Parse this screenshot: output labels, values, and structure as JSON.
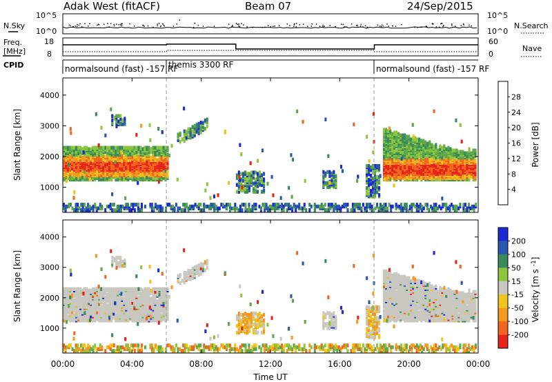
{
  "header": {
    "station": "Adak West (fitACF)",
    "beam": "Beam 07",
    "date": "24/Sep/2015"
  },
  "noise_panel": {
    "left_label": "N.Sky",
    "left_ticks": [
      "10^5",
      "10^0"
    ],
    "right_label": "N.Search",
    "right_ticks": [
      "10^5",
      "10^0"
    ]
  },
  "freq_panel": {
    "left_label_1": "Freq.",
    "left_label_2": "[MHz]",
    "left_ticks": [
      "18",
      "8"
    ],
    "right_label": "Nave",
    "right_ticks": [
      "60",
      "0"
    ]
  },
  "cpid_panel": {
    "label": "CPID",
    "segments": [
      {
        "name": "normalsound (fast) -157 RF",
        "start": "00:00",
        "end": "06:00"
      },
      {
        "name": "themis 3300 RF",
        "start": "06:00",
        "end": "18:00"
      },
      {
        "name": "normalsound (fast) -157 RF",
        "start": "18:00",
        "end": "24:00"
      }
    ]
  },
  "colors": {
    "power_scale": [
      "#1a2bd6",
      "#2a57b0",
      "#3b8a5c",
      "#5fa84a",
      "#8cc63f",
      "#f0c419",
      "#f59a1f",
      "#f2661f",
      "#e8241a"
    ],
    "velocity_scale": [
      "#1a2bd6",
      "#2a57b0",
      "#3b8a5c",
      "#5fa84a",
      "#8cc63f",
      "#c8c8c0",
      "#f0c419",
      "#f59a1f",
      "#f2661f",
      "#e8241a"
    ],
    "gray": "#c8c8c0"
  },
  "chart_data": [
    {
      "type": "heatmap",
      "name": "power",
      "ylabel": "Slant Range [km]",
      "ylim": [
        180,
        4560
      ],
      "yticks": [
        "1000",
        "2000",
        "3000",
        "4000"
      ],
      "colorbar_label": "Power [dB]",
      "colorbar_ticks": [
        "4",
        "8",
        "12",
        "16",
        "20",
        "24",
        "28"
      ],
      "colorbar_range": [
        0,
        32
      ],
      "xlim_hours": [
        0,
        24
      ],
      "echo_regions": [
        {
          "t0": 0.0,
          "t1": 6.1,
          "r0": 1250,
          "r1": 2300,
          "core": 1700
        },
        {
          "t0": 2.8,
          "t1": 3.6,
          "r0": 3050,
          "r1": 3350
        },
        {
          "t0": 6.6,
          "t1": 8.3,
          "r0": 2400,
          "r1": 3100
        },
        {
          "t0": 10.0,
          "t1": 11.6,
          "r0": 850,
          "r1": 1500
        },
        {
          "t0": 15.0,
          "t1": 15.8,
          "r0": 1000,
          "r1": 1500
        },
        {
          "t0": 17.5,
          "t1": 18.3,
          "r0": 700,
          "r1": 1700
        },
        {
          "t0": 18.5,
          "t1": 24.0,
          "r0": 1250,
          "r1": 2800,
          "core": 1600
        }
      ]
    },
    {
      "type": "heatmap",
      "name": "velocity",
      "ylabel": "Slant Range [km]",
      "ylim": [
        180,
        4560
      ],
      "yticks": [
        "1000",
        "2000",
        "3000",
        "4000"
      ],
      "colorbar_label": "Velocity [m s^-1]",
      "colorbar_ticks": [
        "200",
        "100",
        "50",
        "15",
        "-15",
        "-50",
        "-100",
        "-200"
      ],
      "xlim_hours": [
        0,
        24
      ],
      "xlabel": "Time UT",
      "xticks": [
        "00:00",
        "04:00",
        "08:00",
        "12:00",
        "16:00",
        "20:00",
        "00:00"
      ]
    }
  ]
}
